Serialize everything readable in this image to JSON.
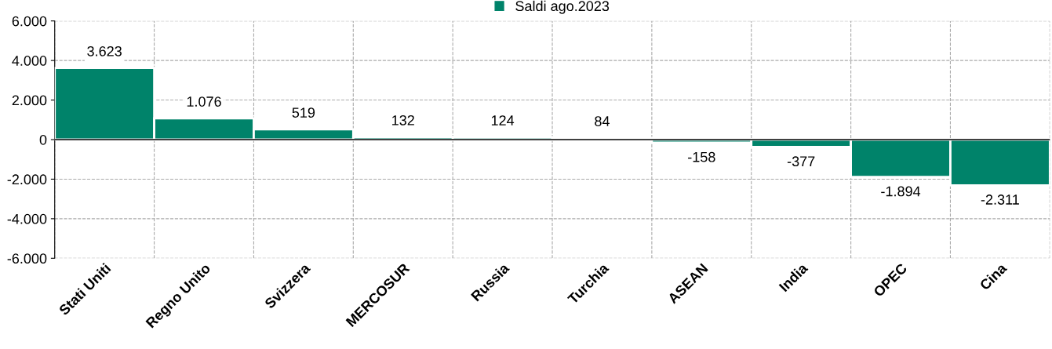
{
  "chart_data": {
    "type": "bar",
    "categories": [
      "Stati Uniti",
      "Regno Unito",
      "Svizzera",
      "MERCOSUR",
      "Russia",
      "Turchia",
      "ASEAN",
      "India",
      "OPEC",
      "Cina"
    ],
    "series": [
      {
        "name": "Saldi ago.2023",
        "color": "#00836a",
        "values": [
          3623,
          1076,
          519,
          132,
          124,
          84,
          -158,
          -377,
          -1894,
          -2311
        ],
        "value_labels": [
          "3.623",
          "1.076",
          "519",
          "132",
          "124",
          "84",
          "-158",
          "-377",
          "-1.894",
          "-2.311"
        ]
      }
    ],
    "ylim": [
      -6000,
      6000
    ],
    "yticks": [
      {
        "value": -6000,
        "label": "-6.000"
      },
      {
        "value": -4000,
        "label": "-4.000"
      },
      {
        "value": -2000,
        "label": "-2.000"
      },
      {
        "value": 0,
        "label": "0"
      },
      {
        "value": 2000,
        "label": "2.000"
      },
      {
        "value": 4000,
        "label": "4.000"
      },
      {
        "value": 6000,
        "label": "6.000"
      }
    ],
    "grid": true,
    "legend": "top"
  }
}
